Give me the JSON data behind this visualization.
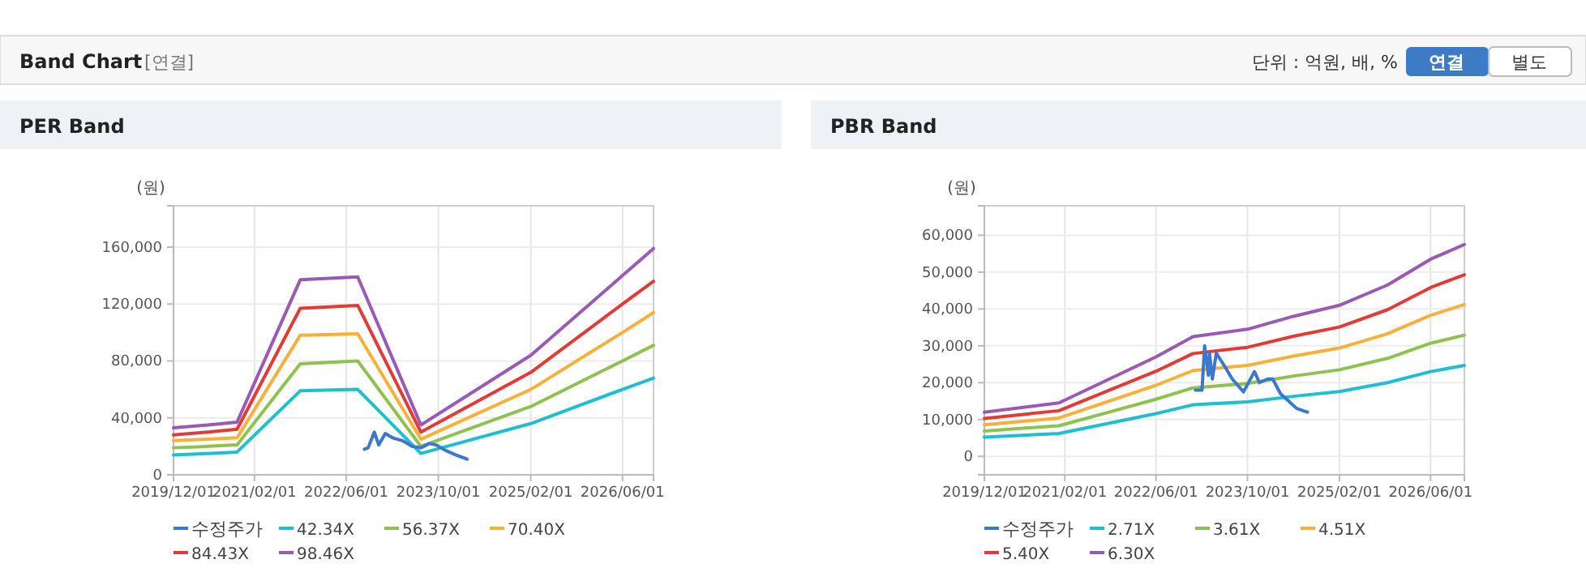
{
  "chart_data": [
    {
      "type": "line",
      "title": "PER Band",
      "ylabel": "(원)",
      "annotations": [
        "Band Chart",
        "[연결]",
        "단위 : 억원, 배, %",
        "연결",
        "별도"
      ],
      "xlim": [
        "2019-12-01",
        "2026-11-12"
      ],
      "xticks": [
        {
          "value": "2019-12-01",
          "label": "2019/12/01"
        },
        {
          "value": "2021-02-01",
          "label": "2021/02/01"
        },
        {
          "value": "2022-06-01",
          "label": "2022/06/01"
        },
        {
          "value": "2023-10-01",
          "label": "2023/10/01"
        },
        {
          "value": "2025-02-01",
          "label": "2025/02/01"
        },
        {
          "value": "2026-06-01",
          "label": "2026/06/01"
        }
      ],
      "ylim": [
        0,
        189000
      ],
      "yticks": [
        {
          "value": 0,
          "label": "0"
        },
        {
          "value": 40000,
          "label": "40,000"
        },
        {
          "value": 80000,
          "label": "80,000"
        },
        {
          "value": 120000,
          "label": "120,000"
        },
        {
          "value": 160000,
          "label": "160,000"
        }
      ],
      "grid": true,
      "legend": "bottom",
      "x": [
        "2019-12-01",
        "2020-06-01",
        "2020-11-01",
        "2021-10-01",
        "2022-08-01",
        "2023-07-01",
        "2025-02-01",
        "2026-06-01",
        "2026-11-12"
      ],
      "series": [
        {
          "name": "수정주가",
          "color": "#3a78d0",
          "x": [
            "2022-09-05",
            "2022-09-25",
            "2022-10-28",
            "2022-11-20",
            "2022-12-25",
            "2023-02-01",
            "2023-03-25",
            "2023-05-15",
            "2023-07-01",
            "2023-08-15",
            "2023-09-20",
            "2023-11-10",
            "2024-01-01",
            "2024-03-01"
          ],
          "values": [
            18000,
            19000,
            30000,
            21000,
            29000,
            26000,
            24000,
            20000,
            19000,
            22000,
            21000,
            17000,
            14000,
            11000
          ]
        },
        {
          "name": "42.34X",
          "color": "#1fbfd0",
          "values": [
            14000,
            15000,
            16000,
            59000,
            60000,
            15000,
            36000,
            60000,
            68000
          ]
        },
        {
          "name": "56.37X",
          "color": "#8fc150",
          "values": [
            19000,
            20000,
            21000,
            78000,
            80000,
            20000,
            48000,
            80000,
            91000
          ]
        },
        {
          "name": "70.40X",
          "color": "#f7b03a",
          "values": [
            24000,
            25000,
            26000,
            98000,
            99000,
            25000,
            60000,
            100000,
            114000
          ]
        },
        {
          "name": "84.43X",
          "color": "#e23b35",
          "values": [
            28000,
            30000,
            32000,
            117000,
            119000,
            30000,
            72000,
            120000,
            136000
          ]
        },
        {
          "name": "98.46X",
          "color": "#9b59b6",
          "values": [
            33000,
            35000,
            37000,
            137000,
            139000,
            35000,
            84000,
            140000,
            159000
          ]
        }
      ]
    },
    {
      "type": "line",
      "title": "PBR Band",
      "ylabel": "(원)",
      "xlim": [
        "2019-12-01",
        "2026-11-28"
      ],
      "xticks": [
        {
          "value": "2019-12-01",
          "label": "2019/12/01"
        },
        {
          "value": "2021-02-01",
          "label": "2021/02/01"
        },
        {
          "value": "2022-06-01",
          "label": "2022/06/01"
        },
        {
          "value": "2023-10-01",
          "label": "2023/10/01"
        },
        {
          "value": "2025-02-01",
          "label": "2025/02/01"
        },
        {
          "value": "2026-06-01",
          "label": "2026/06/01"
        }
      ],
      "ylim": [
        -5000,
        68000
      ],
      "yticks": [
        {
          "value": 0,
          "label": "0"
        },
        {
          "value": 10000,
          "label": "10,000"
        },
        {
          "value": 20000,
          "label": "20,000"
        },
        {
          "value": 30000,
          "label": "30,000"
        },
        {
          "value": 40000,
          "label": "40,000"
        },
        {
          "value": 50000,
          "label": "50,000"
        },
        {
          "value": 60000,
          "label": "60,000"
        }
      ],
      "grid": true,
      "legend": "bottom",
      "x": [
        "2019-12-01",
        "2021-01-01",
        "2022-06-01",
        "2022-12-15",
        "2023-10-01",
        "2024-06-01",
        "2025-02-01",
        "2025-10-15",
        "2026-06-01",
        "2026-11-28"
      ],
      "series": [
        {
          "name": "수정주가",
          "color": "#3a78d0",
          "x": [
            "2022-12-28",
            "2023-02-01",
            "2023-02-15",
            "2023-03-07",
            "2023-03-13",
            "2023-03-28",
            "2023-04-18",
            "2023-06-01",
            "2023-07-12",
            "2023-09-10",
            "2023-11-07",
            "2023-12-04",
            "2024-01-16",
            "2024-02-12",
            "2024-03-25",
            "2024-05-07",
            "2024-06-19",
            "2024-08-15"
          ],
          "values": [
            18000,
            18000,
            30000,
            22000,
            28000,
            21000,
            28000,
            24500,
            21000,
            17500,
            23000,
            20000,
            21000,
            21000,
            17000,
            15000,
            13000,
            12000
          ]
        },
        {
          "name": "2.71X",
          "color": "#1fbfd0",
          "values": [
            5200,
            6200,
            11600,
            14000,
            14800,
            16300,
            17600,
            20000,
            23000,
            24700
          ]
        },
        {
          "name": "3.61X",
          "color": "#8fc150",
          "values": [
            6900,
            8300,
            15500,
            18600,
            19800,
            21800,
            23500,
            26600,
            30700,
            32900
          ]
        },
        {
          "name": "4.51X",
          "color": "#f7b03a",
          "values": [
            8600,
            10400,
            19300,
            23300,
            24700,
            27200,
            29400,
            33300,
            38300,
            41200
          ]
        },
        {
          "name": "5.40X",
          "color": "#e23b35",
          "values": [
            10300,
            12400,
            23100,
            27900,
            29600,
            32600,
            35100,
            39800,
            45800,
            49300
          ]
        },
        {
          "name": "6.30X",
          "color": "#9b59b6",
          "values": [
            12000,
            14500,
            27000,
            32500,
            34500,
            38000,
            41000,
            46500,
            53500,
            57500
          ]
        }
      ]
    }
  ]
}
